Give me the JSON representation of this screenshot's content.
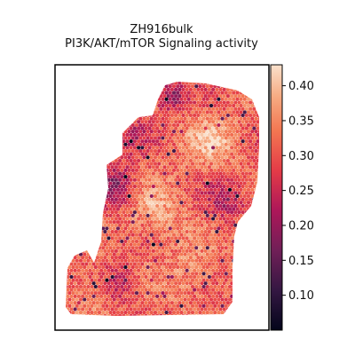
{
  "title": "ZH916bulk",
  "subtitle": "PI3K/AKT/mTOR Signaling activity",
  "chart_data": {
    "type": "heatmap",
    "title": "ZH916bulk",
    "subtitle": "PI3K/AKT/mTOR Signaling activity",
    "colormap": "rocket",
    "colorbar": {
      "range": [
        0.05,
        0.43
      ],
      "ticks": [
        0.1,
        0.15,
        0.2,
        0.25,
        0.3,
        0.35,
        0.4
      ],
      "tick_labels": [
        "0.10",
        "0.15",
        "0.20",
        "0.25",
        "0.30",
        "0.35",
        "0.40"
      ]
    },
    "grid": false,
    "axes_ticks": false,
    "spots": "hexagonal spatial transcriptomics spots, values approx. 0.05–0.42; highest (~0.38–0.42) in the central and upper-right tissue regions, lowest (~0.05–0.12) along the left and upper edges"
  }
}
